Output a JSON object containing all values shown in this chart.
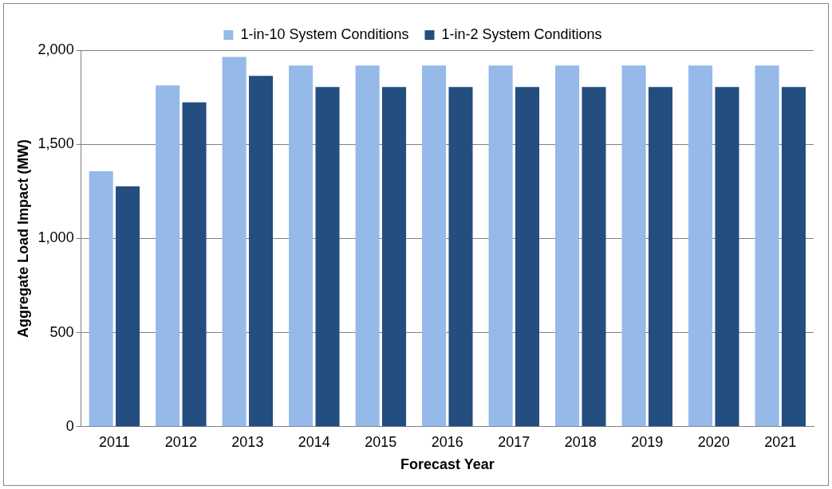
{
  "chart_data": {
    "type": "bar",
    "xlabel": "Forecast Year",
    "ylabel": "Aggregate Load Impact (MW)",
    "categories": [
      "2011",
      "2012",
      "2013",
      "2014",
      "2015",
      "2016",
      "2017",
      "2018",
      "2019",
      "2020",
      "2021"
    ],
    "series": [
      {
        "name": "1-in-10 System Conditions",
        "color": "#95b9e8",
        "values": [
          1357,
          1813,
          1964,
          1919,
          1919,
          1919,
          1919,
          1919,
          1919,
          1919,
          1919
        ]
      },
      {
        "name": "1-in-2 System Conditions",
        "color": "#244d80",
        "values": [
          1277,
          1723,
          1864,
          1804,
          1804,
          1804,
          1804,
          1804,
          1804,
          1804,
          1804
        ]
      }
    ],
    "ylim": [
      0,
      2000
    ],
    "yticks": [
      {
        "value": 0,
        "label": "0"
      },
      {
        "value": 500,
        "label": "500"
      },
      {
        "value": 1000,
        "label": "1,000"
      },
      {
        "value": 1500,
        "label": "1,500"
      },
      {
        "value": 2000,
        "label": "2,000"
      }
    ],
    "grid": "y",
    "legend": "top"
  }
}
